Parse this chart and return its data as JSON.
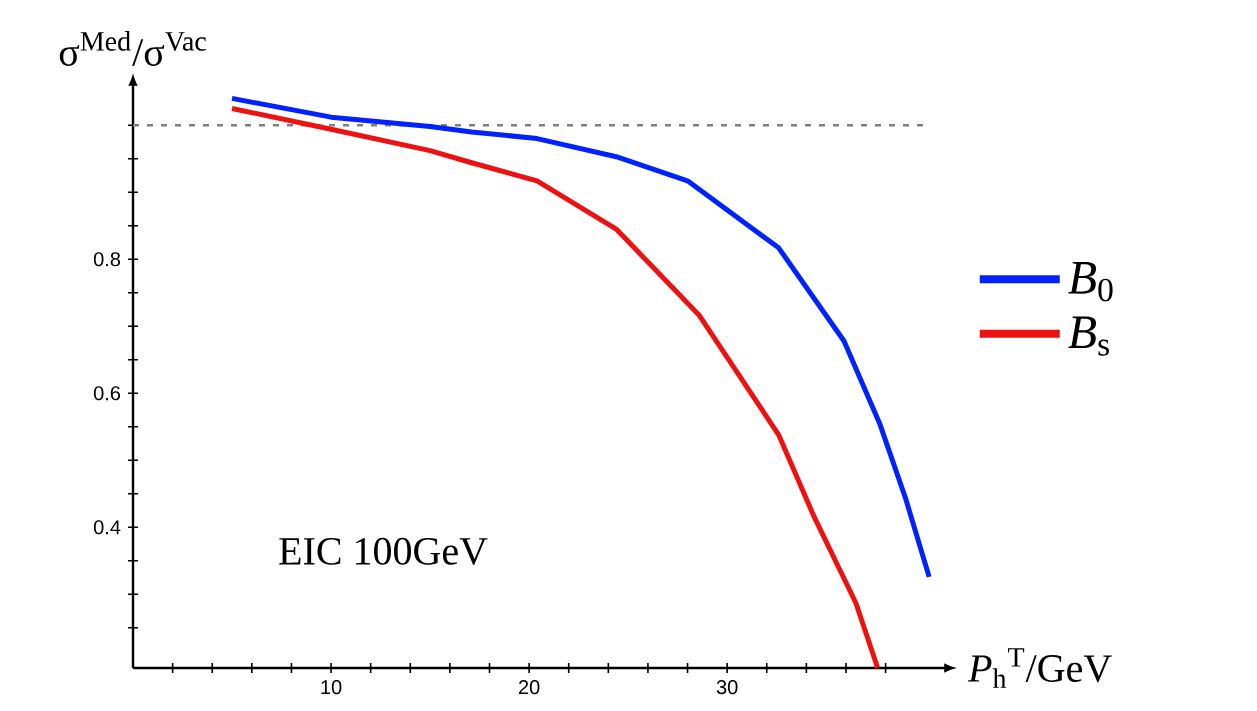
{
  "chart_data": {
    "type": "line",
    "ylabel": "σ$^{Med}$/σ$^{Vac}$",
    "xlabel": "*P*$_{h}$$^{T}$/GeV",
    "annotations": [
      "EIC 100GeV"
    ],
    "xlim": [
      0,
      41
    ],
    "ylim": [
      0.19,
      1.06
    ],
    "xticks": [
      {
        "value": 2,
        "label": null
      },
      {
        "value": 4,
        "label": null
      },
      {
        "value": 6,
        "label": null
      },
      {
        "value": 8,
        "label": null
      },
      10,
      {
        "value": 12,
        "label": null
      },
      {
        "value": 14,
        "label": null
      },
      {
        "value": 16,
        "label": null
      },
      {
        "value": 18,
        "label": null
      },
      20,
      {
        "value": 22,
        "label": null
      },
      {
        "value": 24,
        "label": null
      },
      {
        "value": 26,
        "label": null
      },
      {
        "value": 28,
        "label": null
      },
      30,
      {
        "value": 32,
        "label": null
      },
      {
        "value": 34,
        "label": null
      },
      {
        "value": 36,
        "label": null
      },
      {
        "value": 38,
        "label": null
      }
    ],
    "yticks": [
      {
        "value": 0.25,
        "label": null
      },
      {
        "value": 0.3,
        "label": null
      },
      {
        "value": 0.35,
        "label": null
      },
      0.4,
      {
        "value": 0.45,
        "label": null
      },
      {
        "value": 0.5,
        "label": null
      },
      {
        "value": 0.55,
        "label": null
      },
      0.6,
      {
        "value": 0.65,
        "label": null
      },
      {
        "value": 0.7,
        "label": null
      },
      {
        "value": 0.75,
        "label": null
      },
      0.8,
      {
        "value": 0.85,
        "label": null
      },
      {
        "value": 0.9,
        "label": null
      },
      {
        "value": 0.95,
        "label": null
      },
      {
        "value": 1.0,
        "label": null
      }
    ],
    "ref_lines": [
      {
        "axis": "y",
        "value": 1.0,
        "color": "#808080",
        "line_style": "dashed"
      }
    ],
    "legend": "right",
    "grid": false,
    "series": [
      {
        "name": "*B*$_{0}$",
        "color": "#0022ff",
        "x": [
          5,
          10,
          15,
          17.1,
          20.4,
          24.4,
          28,
          32.6,
          35.9,
          37.7,
          39,
          40.2
        ],
        "values": [
          1.04,
          1.012,
          0.998,
          0.99,
          0.98,
          0.953,
          0.917,
          0.817,
          0.678,
          0.555,
          0.444,
          0.326
        ]
      },
      {
        "name": "*B*$_{s}$",
        "color": "#ee1111",
        "x": [
          5,
          10,
          15,
          17.1,
          20.4,
          24.4,
          28.6,
          32.6,
          34.4,
          36.5,
          37.6
        ],
        "values": [
          1.025,
          0.994,
          0.962,
          0.944,
          0.917,
          0.845,
          0.716,
          0.538,
          0.415,
          0.287,
          0.19
        ]
      }
    ]
  }
}
